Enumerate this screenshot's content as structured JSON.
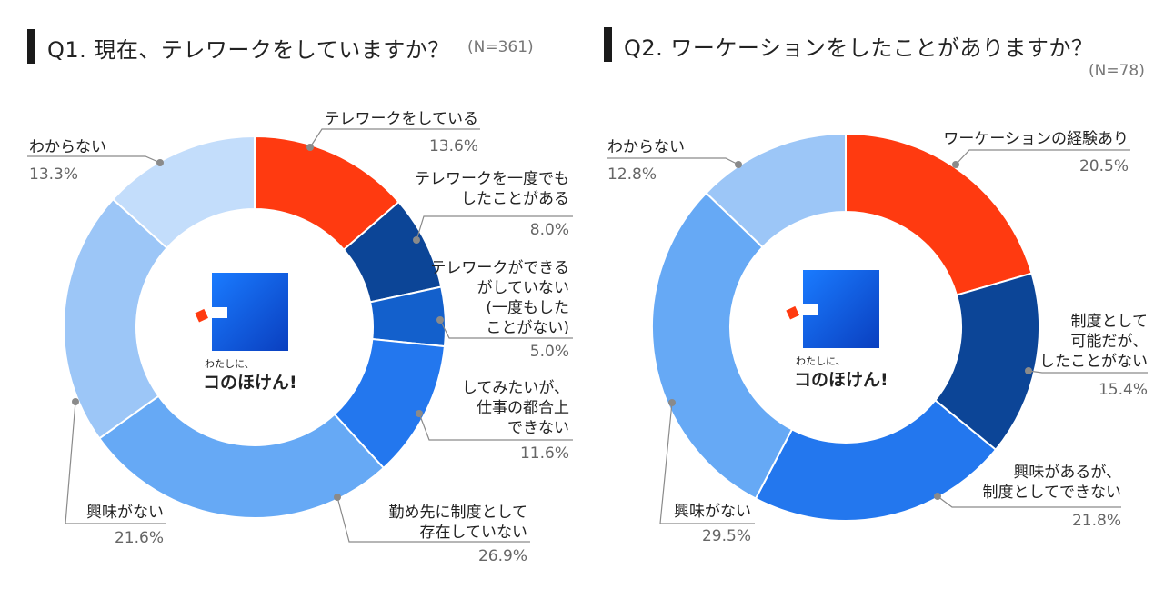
{
  "colors": {
    "red": "#ff3a10",
    "navy": "#0c4597",
    "mid_blue": "#1360cc",
    "bright_blue": "#2377ee",
    "sky_blue": "#66a9f5",
    "light_blue": "#9cc6f7",
    "pale_blue": "#c3ddfb",
    "leader": "#8a8a8a"
  },
  "logo": {
    "small_text": "わたしに、",
    "big_text": "コのほけん!"
  },
  "chart_data": [
    {
      "type": "donut",
      "title": "Q1. 現在、テレワークをしていますか？",
      "n_label": "(N=361)",
      "categories": [
        {
          "label_lines": [
            "テレワークをしている"
          ],
          "value": 13.6,
          "value_label": "13.6%",
          "color": "red"
        },
        {
          "label_lines": [
            "テレワークを一度でも",
            "したことがある"
          ],
          "value": 8.0,
          "value_label": "8.0%",
          "color": "navy"
        },
        {
          "label_lines": [
            "テレワークができる",
            "がしていない",
            "(一度もした",
            "ことがない)"
          ],
          "value": 5.0,
          "value_label": "5.0%",
          "color": "mid_blue"
        },
        {
          "label_lines": [
            "してみたいが、",
            "仕事の都合上",
            "できない"
          ],
          "value": 11.6,
          "value_label": "11.6%",
          "color": "bright_blue"
        },
        {
          "label_lines": [
            "勤め先に制度として",
            "存在していない"
          ],
          "value": 26.9,
          "value_label": "26.9%",
          "color": "sky_blue"
        },
        {
          "label_lines": [
            "興味がない"
          ],
          "value": 21.6,
          "value_label": "21.6%",
          "color": "light_blue"
        },
        {
          "label_lines": [
            "わからない"
          ],
          "value": 13.3,
          "value_label": "13.3%",
          "color": "pale_blue"
        }
      ]
    },
    {
      "type": "donut",
      "title": "Q2. ワーケーションをしたことがありますか？",
      "n_label": "(N=78)",
      "categories": [
        {
          "label_lines": [
            "ワーケーションの経験あり"
          ],
          "value": 20.5,
          "value_label": "20.5%",
          "color": "red"
        },
        {
          "label_lines": [
            "制度として",
            "可能だが、",
            "したことがない"
          ],
          "value": 15.4,
          "value_label": "15.4%",
          "color": "navy"
        },
        {
          "label_lines": [
            "興味があるが、",
            "制度としてできない"
          ],
          "value": 21.8,
          "value_label": "21.8%",
          "color": "bright_blue"
        },
        {
          "label_lines": [
            "興味がない"
          ],
          "value": 29.5,
          "value_label": "29.5%",
          "color": "sky_blue"
        },
        {
          "label_lines": [
            "わからない"
          ],
          "value": 12.8,
          "value_label": "12.8%",
          "color": "light_blue"
        }
      ]
    }
  ]
}
